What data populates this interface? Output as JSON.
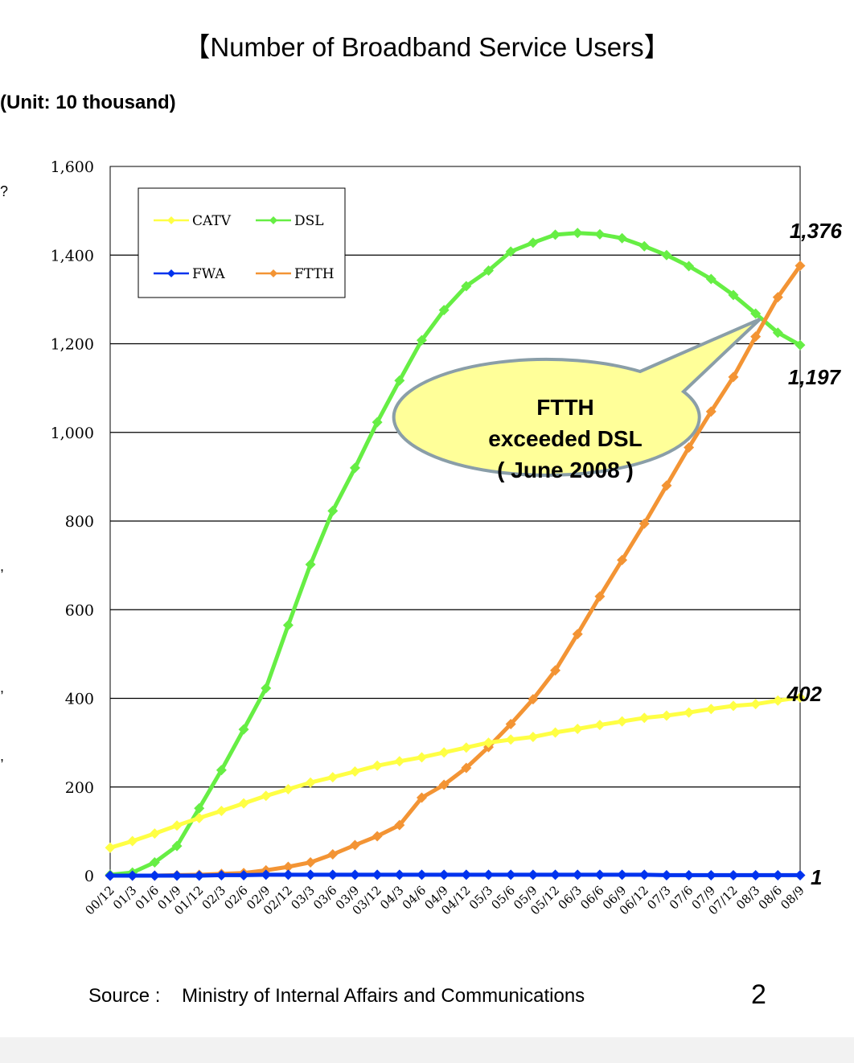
{
  "page": {
    "title": "【Number of  Broadband Service Users】",
    "unit": "(Unit: 10 thousand)",
    "source_label": "Source :",
    "source_text": "Ministry of Internal Affairs and Communications",
    "page_number": "2"
  },
  "chart_data": {
    "type": "line",
    "title": "【Number of  Broadband Service Users】",
    "ylabel": "(Unit: 10 thousand)",
    "xlabel": "",
    "ylim": [
      0,
      1600
    ],
    "yticks": [
      0,
      200,
      400,
      600,
      800,
      1000,
      1200,
      1400,
      1600
    ],
    "ytick_labels": [
      "0",
      "200",
      "400",
      "600",
      "800",
      "1,000",
      "1,200",
      "1,400",
      "1,600"
    ],
    "grid": true,
    "legend_position": "top-left",
    "categories": [
      "00/12",
      "01/3",
      "01/6",
      "01/9",
      "01/12",
      "02/3",
      "02/6",
      "02/9",
      "02/12",
      "03/3",
      "03/6",
      "03/9",
      "03/12",
      "04/3",
      "04/6",
      "04/9",
      "04/12",
      "05/3",
      "05/6",
      "05/9",
      "05/12",
      "06/3",
      "06/6",
      "06/9",
      "06/12",
      "07/3",
      "07/6",
      "07/9",
      "07/12",
      "08/3",
      "08/6",
      "08/9"
    ],
    "series": [
      {
        "name": "CATV",
        "color": "#ffff44",
        "values": [
          63,
          78,
          95,
          113,
          130,
          146,
          163,
          180,
          195,
          210,
          222,
          235,
          248,
          258,
          267,
          278,
          289,
          300,
          307,
          313,
          323,
          331,
          340,
          348,
          356,
          361,
          368,
          376,
          383,
          387,
          395,
          402
        ]
      },
      {
        "name": "DSL",
        "color": "#66ee44",
        "values": [
          2,
          7,
          30,
          67,
          152,
          238,
          330,
          423,
          565,
          702,
          823,
          920,
          1023,
          1117,
          1208,
          1276,
          1330,
          1365,
          1408,
          1428,
          1446,
          1450,
          1447,
          1438,
          1420,
          1400,
          1375,
          1346,
          1310,
          1268,
          1225,
          1197
        ]
      },
      {
        "name": "FWA",
        "color": "#0033ee",
        "values": [
          0,
          0,
          0,
          0,
          0,
          1,
          1,
          2,
          2,
          2,
          2,
          2,
          2,
          2,
          2,
          2,
          2,
          2,
          2,
          2,
          2,
          2,
          2,
          2,
          2,
          1,
          1,
          1,
          1,
          1,
          1,
          1
        ]
      },
      {
        "name": "FTTH",
        "color": "#f39434",
        "values": [
          0,
          0,
          0,
          1,
          2,
          4,
          6,
          12,
          20,
          30,
          48,
          69,
          89,
          114,
          176,
          205,
          243,
          290,
          342,
          398,
          463,
          545,
          630,
          712,
          794,
          880,
          966,
          1047,
          1125,
          1216,
          1305,
          1376
        ]
      }
    ],
    "end_labels": [
      {
        "series": "FTTH",
        "text": "1,376"
      },
      {
        "series": "DSL",
        "text": "1,197"
      },
      {
        "series": "CATV",
        "text": "402"
      },
      {
        "series": "FWA",
        "text": "1"
      }
    ],
    "annotation": {
      "lines": [
        "FTTH",
        "exceeded DSL",
        "( June 2008 )"
      ],
      "fill": "#ffff99",
      "stroke": "#8a9ea8"
    }
  },
  "side_marks": [
    "?",
    ",",
    ",",
    ","
  ]
}
